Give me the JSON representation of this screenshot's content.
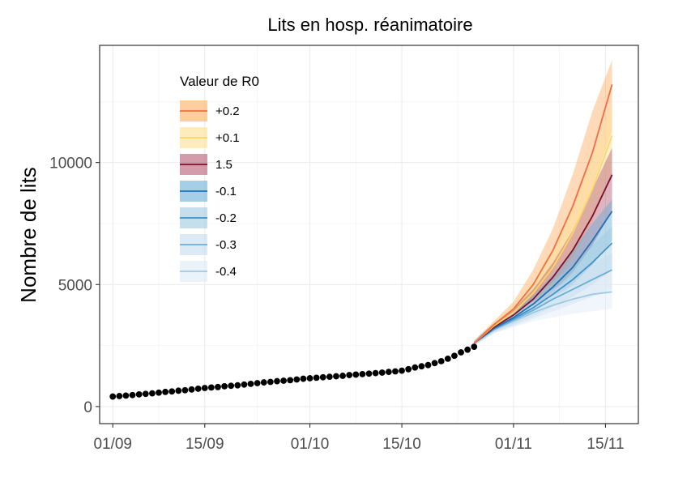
{
  "chart_data": {
    "type": "line",
    "title": "Lits en hosp. réanimatoire",
    "xlabel": "",
    "ylabel": "Nombre de lits",
    "x_ticks": [
      "01/09",
      "15/09",
      "01/10",
      "15/10",
      "01/11",
      "15/11"
    ],
    "y_ticks": [
      "0",
      "5000",
      "10000"
    ],
    "ylim": [
      -700,
      14800
    ],
    "xlim": [
      "2020-08-30",
      "2020-11-20"
    ],
    "grid": true,
    "legend": {
      "title": "Valeur de R0",
      "placement": "top-left"
    },
    "observed": {
      "x": [
        "2020-09-01",
        "2020-09-02",
        "2020-09-03",
        "2020-09-04",
        "2020-09-05",
        "2020-09-06",
        "2020-09-07",
        "2020-09-08",
        "2020-09-09",
        "2020-09-10",
        "2020-09-11",
        "2020-09-12",
        "2020-09-13",
        "2020-09-14",
        "2020-09-15",
        "2020-09-16",
        "2020-09-17",
        "2020-09-18",
        "2020-09-19",
        "2020-09-20",
        "2020-09-21",
        "2020-09-22",
        "2020-09-23",
        "2020-09-24",
        "2020-09-25",
        "2020-09-26",
        "2020-09-27",
        "2020-09-28",
        "2020-09-29",
        "2020-09-30",
        "2020-10-01",
        "2020-10-02",
        "2020-10-03",
        "2020-10-04",
        "2020-10-05",
        "2020-10-06",
        "2020-10-07",
        "2020-10-08",
        "2020-10-09",
        "2020-10-10",
        "2020-10-11",
        "2020-10-12",
        "2020-10-13",
        "2020-10-14",
        "2020-10-15",
        "2020-10-16",
        "2020-10-17",
        "2020-10-18",
        "2020-10-19",
        "2020-10-20",
        "2020-10-21",
        "2020-10-22",
        "2020-10-23",
        "2020-10-24",
        "2020-10-25",
        "2020-10-26"
      ],
      "y": [
        410,
        430,
        450,
        470,
        500,
        520,
        540,
        570,
        600,
        620,
        650,
        670,
        700,
        730,
        760,
        780,
        800,
        830,
        850,
        870,
        900,
        930,
        960,
        990,
        1010,
        1040,
        1060,
        1080,
        1110,
        1140,
        1160,
        1180,
        1200,
        1220,
        1240,
        1260,
        1290,
        1310,
        1330,
        1350,
        1370,
        1390,
        1420,
        1440,
        1470,
        1530,
        1600,
        1650,
        1700,
        1780,
        1860,
        1960,
        2080,
        2220,
        2330,
        2450
      ]
    },
    "projection_x": [
      "2020-10-26",
      "2020-10-29",
      "2020-11-01",
      "2020-11-04",
      "2020-11-07",
      "2020-11-10",
      "2020-11-13",
      "2020-11-16"
    ],
    "series": [
      {
        "name": "+0.2",
        "color": "#f46d43",
        "band_color": "#fdae61",
        "values": [
          2600,
          3350,
          4000,
          5000,
          6400,
          8200,
          10400,
          13200
        ],
        "lower": [
          2500,
          3200,
          3700,
          4500,
          5600,
          7100,
          9000,
          11300
        ],
        "upper": [
          2700,
          3500,
          4300,
          5600,
          7300,
          9500,
          12100,
          14200
        ]
      },
      {
        "name": "+0.1",
        "color": "#fdd663",
        "band_color": "#fee090",
        "values": [
          2600,
          3300,
          3850,
          4650,
          5700,
          7100,
          8900,
          11100
        ],
        "lower": [
          2500,
          3150,
          3600,
          4200,
          5000,
          6100,
          7600,
          9500
        ],
        "upper": [
          2700,
          3450,
          4150,
          5150,
          6500,
          8100,
          10200,
          12400
        ]
      },
      {
        "name": "1.5",
        "color": "#7f0f2e",
        "band_color": "#b45a72",
        "values": [
          2600,
          3250,
          3750,
          4400,
          5300,
          6400,
          7800,
          9500
        ],
        "lower": [
          2500,
          3100,
          3500,
          4000,
          4700,
          5500,
          6600,
          8000
        ],
        "upper": [
          2700,
          3400,
          4000,
          4800,
          5900,
          7200,
          8900,
          10600
        ]
      },
      {
        "name": "-0.1",
        "color": "#2171b5",
        "band_color": "#6baed6",
        "values": [
          2600,
          3200,
          3650,
          4200,
          4900,
          5700,
          6800,
          8000
        ],
        "lower": [
          2500,
          3050,
          3400,
          3850,
          4400,
          5000,
          5800,
          6800
        ],
        "upper": [
          2700,
          3350,
          3900,
          4550,
          5400,
          6400,
          7500,
          8500
        ]
      },
      {
        "name": "-0.2",
        "color": "#4292c6",
        "band_color": "#9ecae1",
        "values": [
          2600,
          3200,
          3600,
          4050,
          4600,
          5200,
          5900,
          6700
        ],
        "lower": [
          2500,
          3050,
          3350,
          3700,
          4100,
          4500,
          5000,
          5600
        ],
        "upper": [
          2700,
          3350,
          3850,
          4400,
          5100,
          5800,
          6600,
          7400
        ]
      },
      {
        "name": "-0.3",
        "color": "#6baed6",
        "band_color": "#c6dbef",
        "values": [
          2600,
          3150,
          3550,
          3950,
          4400,
          4800,
          5200,
          5600
        ],
        "lower": [
          2500,
          3000,
          3300,
          3600,
          3900,
          4200,
          4500,
          4800
        ],
        "upper": [
          2700,
          3300,
          3800,
          4300,
          4800,
          5300,
          5800,
          6300
        ]
      },
      {
        "name": "-0.4",
        "color": "#9ecae1",
        "band_color": "#deebf7",
        "values": [
          2600,
          3150,
          3500,
          3850,
          4150,
          4400,
          4600,
          4700
        ],
        "lower": [
          2500,
          3000,
          3250,
          3500,
          3650,
          3800,
          3900,
          4000
        ],
        "upper": [
          2700,
          3300,
          3750,
          4150,
          4550,
          4900,
          5200,
          5500
        ]
      }
    ]
  }
}
